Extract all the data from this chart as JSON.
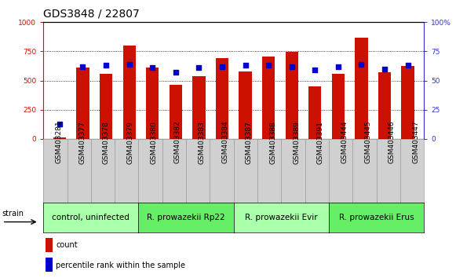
{
  "title": "GDS3848 / 22807",
  "samples": [
    "GSM403281",
    "GSM403377",
    "GSM403378",
    "GSM403379",
    "GSM403380",
    "GSM403382",
    "GSM403383",
    "GSM403384",
    "GSM403387",
    "GSM403388",
    "GSM403389",
    "GSM403391",
    "GSM403444",
    "GSM403445",
    "GSM403446",
    "GSM403447"
  ],
  "counts": [
    15,
    610,
    555,
    800,
    615,
    465,
    540,
    690,
    580,
    705,
    745,
    450,
    560,
    870,
    575,
    625
  ],
  "percentiles": [
    13,
    62,
    63,
    64,
    61,
    57,
    61,
    62,
    63,
    63,
    62,
    59,
    62,
    64,
    60,
    63
  ],
  "groups": [
    {
      "label": "control, uninfected",
      "start": 0,
      "end": 4,
      "color": "#aaffaa"
    },
    {
      "label": "R. prowazekii Rp22",
      "start": 4,
      "end": 8,
      "color": "#66ee66"
    },
    {
      "label": "R. prowazekii Evir",
      "start": 8,
      "end": 12,
      "color": "#aaffaa"
    },
    {
      "label": "R. prowazekii Erus",
      "start": 12,
      "end": 16,
      "color": "#66ee66"
    }
  ],
  "bar_color": "#cc1100",
  "percentile_color": "#0000cc",
  "left_axis_color": "#cc1100",
  "right_axis_color": "#3333cc",
  "ylim_left": [
    0,
    1000
  ],
  "ylim_right": [
    0,
    100
  ],
  "plot_bg_color": "#ffffff",
  "xtick_bg_color": "#d0d0d0",
  "title_fontsize": 10,
  "tick_fontsize": 6.5,
  "label_fontsize": 7,
  "group_fontsize": 7.5
}
